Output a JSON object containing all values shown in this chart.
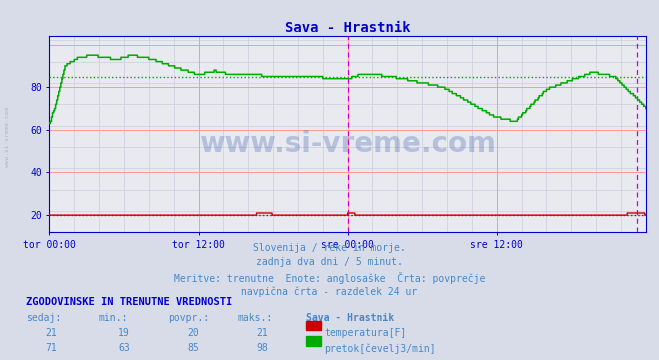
{
  "title": "Sava - Hrastnik",
  "title_color": "#0000cc",
  "bg_color": "#d8dce8",
  "plot_bg_color": "#e8eaf0",
  "grid_color_major": "#ff9999",
  "grid_color_minor": "#ccccdd",
  "xlabel_ticks": [
    "tor 00:00",
    "tor 12:00",
    "sre 00:00",
    "sre 12:00"
  ],
  "xlim": [
    0,
    576
  ],
  "ylim": [
    12,
    104
  ],
  "yticks": [
    20,
    40,
    60,
    80
  ],
  "temp_color": "#cc0000",
  "flow_color": "#00aa00",
  "avg_temp": 20,
  "avg_flow": 85,
  "watermark_text": "www.si-vreme.com",
  "watermark_color": "#3355aa",
  "watermark_alpha": 0.28,
  "subtitle_lines": [
    "Slovenija / reke in morje.",
    "zadnja dva dni / 5 minut.",
    "Meritve: trenutne  Enote: anglosaške  Črta: povprečje",
    "navpična črta - razdelek 24 ur"
  ],
  "subtitle_color": "#4488cc",
  "table_header": "ZGODOVINSKE IN TRENUTNE VREDNOSTI",
  "table_header_color": "#0000cc",
  "table_col_labels": [
    "sedaj:",
    "min.:",
    "povpr.:",
    "maks.:",
    "Sava - Hrastnik"
  ],
  "table_temp": [
    21,
    19,
    20,
    21
  ],
  "table_flow": [
    71,
    63,
    85,
    98
  ],
  "table_label_temp": "temperatura[F]",
  "table_label_flow": "pretok[čevelj3/min]",
  "vline_color": "#cc00cc",
  "vline_pos": 288,
  "right_vline_pos": 567,
  "tick_color": "#0000cc",
  "axis_color": "#0000cc",
  "font_family": "monospace",
  "left_label": "www.si-vreme.com"
}
